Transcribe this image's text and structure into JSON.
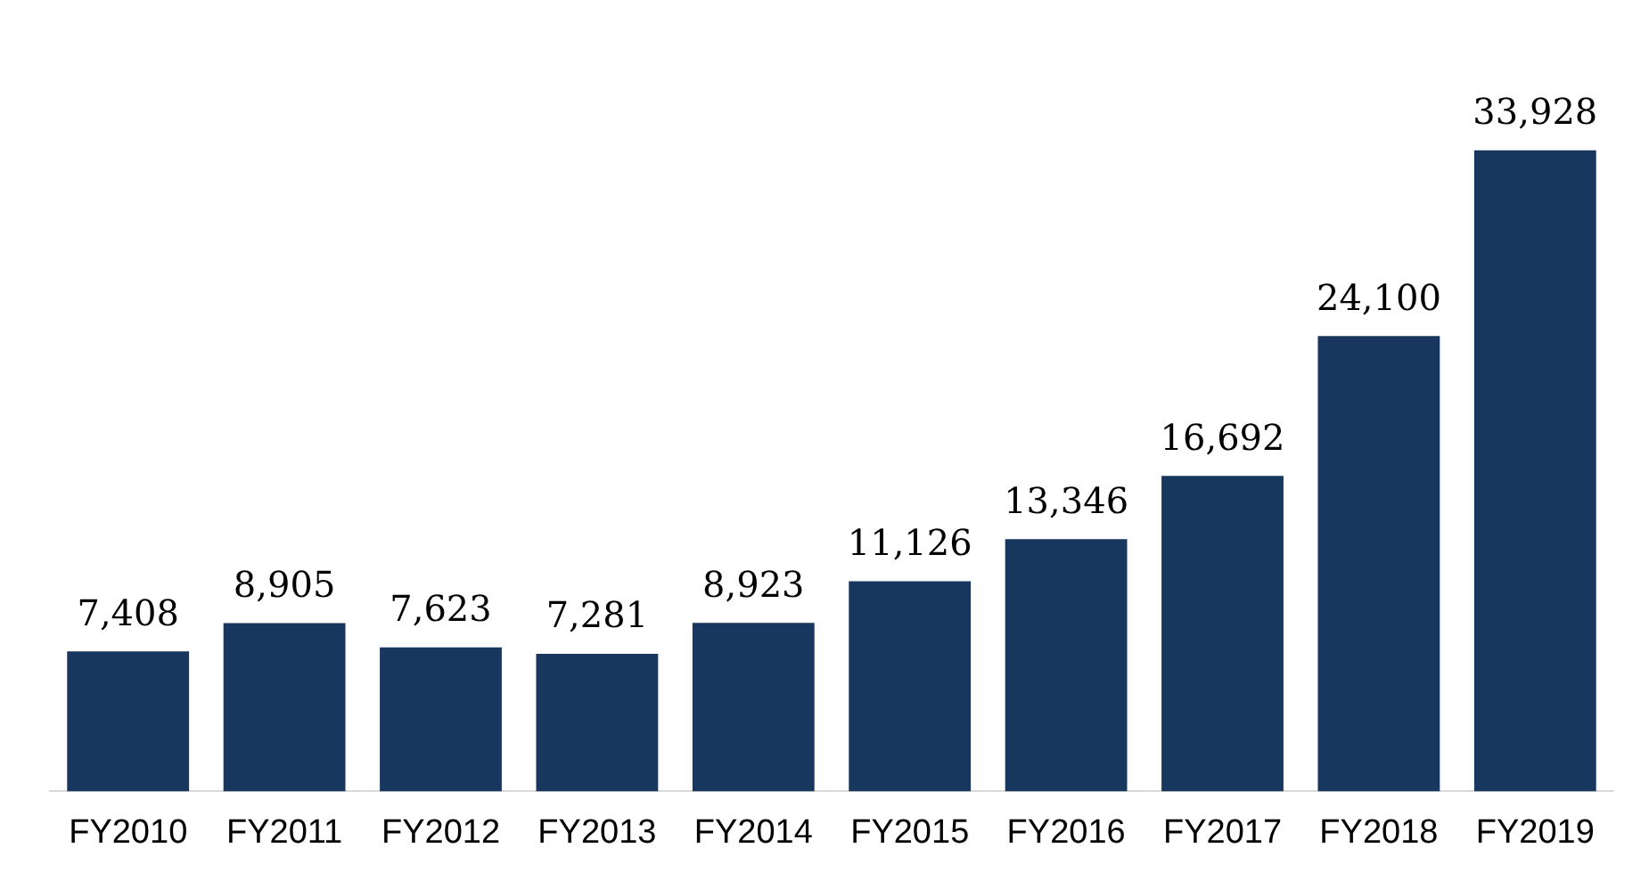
{
  "chart_data": {
    "type": "bar",
    "categories": [
      "FY2010",
      "FY2011",
      "FY2012",
      "FY2013",
      "FY2014",
      "FY2015",
      "FY2016",
      "FY2017",
      "FY2018",
      "FY2019"
    ],
    "values": [
      7408,
      8905,
      7623,
      7281,
      8923,
      11126,
      13346,
      16692,
      24100,
      33928
    ],
    "value_labels": [
      "7,408",
      "8,905",
      "7,623",
      "7,281",
      "8,923",
      "11,126",
      "13,346",
      "16,692",
      "24,100",
      "33,928"
    ],
    "color": "#17375e",
    "grid": false,
    "legend": false
  }
}
